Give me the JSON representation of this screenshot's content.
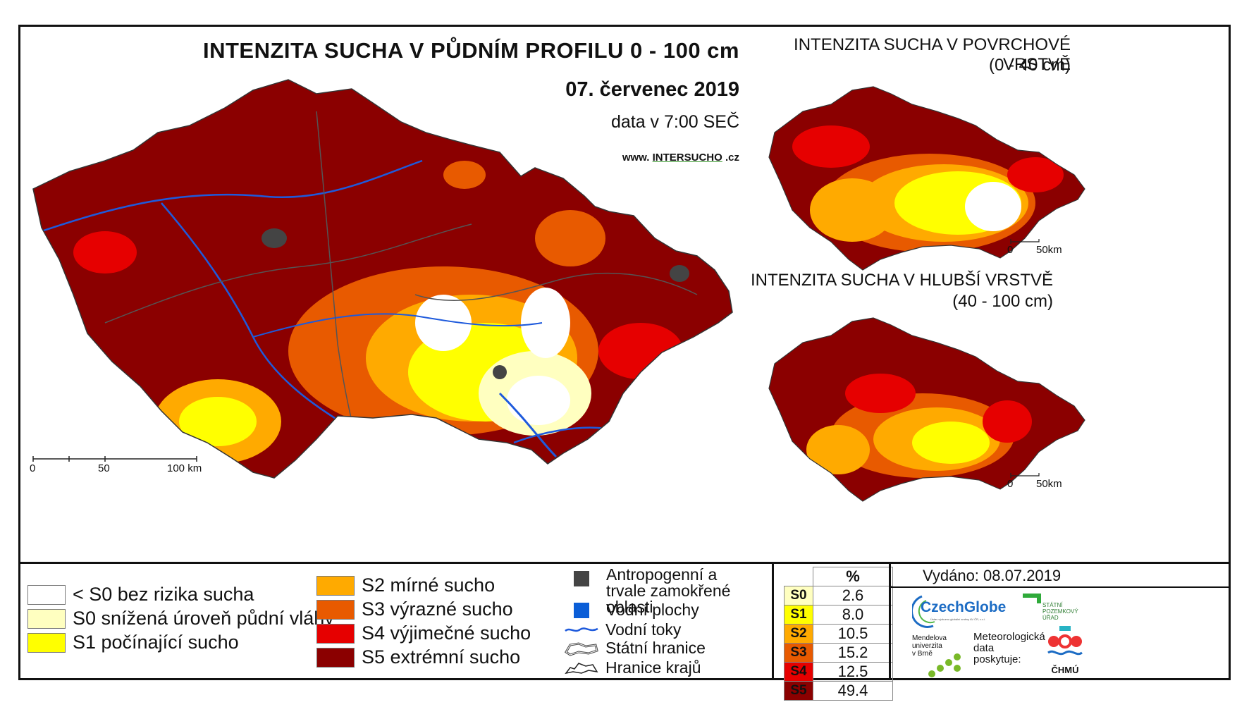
{
  "main_map": {
    "title": "INTENZITA SUCHA V PŮDNÍM PROFILU 0 - 100 cm",
    "date": "07. červenec 2019",
    "time": "data v 7:00 SEČ",
    "website_prefix": "www.",
    "website_brand_a": "INTER",
    "website_brand_b": "SUCHO",
    "website_suffix": ".cz",
    "scale": [
      "0",
      "50",
      "100 km"
    ]
  },
  "surface_map": {
    "title": "INTENZITA SUCHA V POVRCHOVÉ VRSTVĚ",
    "depth": "(0 - 40 cm)",
    "scale": [
      "0",
      "50km"
    ]
  },
  "deep_map": {
    "title": "INTENZITA SUCHA V HLUBŠÍ VRSTVĚ",
    "depth": "(40 - 100 cm)",
    "scale": [
      "0",
      "50km"
    ]
  },
  "legend": {
    "classes": [
      {
        "label": "< S0 bez rizika sucha",
        "color": "#ffffff"
      },
      {
        "label": "S0 snížená úroveň půdní vláhy",
        "color": "#ffffc0"
      },
      {
        "label": "S1 počínající sucho",
        "color": "#ffff00"
      },
      {
        "label": "S2 mírné sucho",
        "color": "#ffaa00"
      },
      {
        "label": "S3 výrazné sucho",
        "color": "#e85a00"
      },
      {
        "label": "S4 výjimečné sucho",
        "color": "#e60000"
      },
      {
        "label": "S5 extrémní sucho",
        "color": "#8b0000"
      }
    ],
    "symbols": [
      {
        "label": "Antropogenní a trvale zamokřené oblasti",
        "icon": "dark-gray-square",
        "color": "#444444"
      },
      {
        "label": "Vodní plochy",
        "icon": "blue-square",
        "color": "#0b5ed7"
      },
      {
        "label": "Vodní toky",
        "icon": "blue-wave-line",
        "color": "#1e5adc"
      },
      {
        "label": "Státní hranice",
        "icon": "double-border-line"
      },
      {
        "label": "Hranice krajů",
        "icon": "single-border-line"
      }
    ]
  },
  "percent_table": {
    "header": "%",
    "rows": [
      {
        "code": "S0",
        "value": "2.6",
        "color": "#ffffc0"
      },
      {
        "code": "S1",
        "value": "8.0",
        "color": "#ffff00"
      },
      {
        "code": "S2",
        "value": "10.5",
        "color": "#ffaa00"
      },
      {
        "code": "S3",
        "value": "15.2",
        "color": "#e85a00"
      },
      {
        "code": "S4",
        "value": "12.5",
        "color": "#e60000"
      },
      {
        "code": "S5",
        "value": "49.4",
        "color": "#8b0000"
      }
    ]
  },
  "credits": {
    "issued": "Vydáno: 08.07.2019",
    "czechglobe": "CzechGlobe",
    "czechglobe_sub": "Ústav výzkumu globální změny AV ČR, v.v.i.",
    "spu": [
      "STÁTNÍ",
      "POZEMKOVÝ",
      "ÚŘAD"
    ],
    "mendelu": [
      "Mendelova",
      "univerzita",
      "v Brně"
    ],
    "meteo": [
      "Meteorologická",
      "data",
      "poskytuje:"
    ],
    "chmu": "ČHMÚ"
  }
}
